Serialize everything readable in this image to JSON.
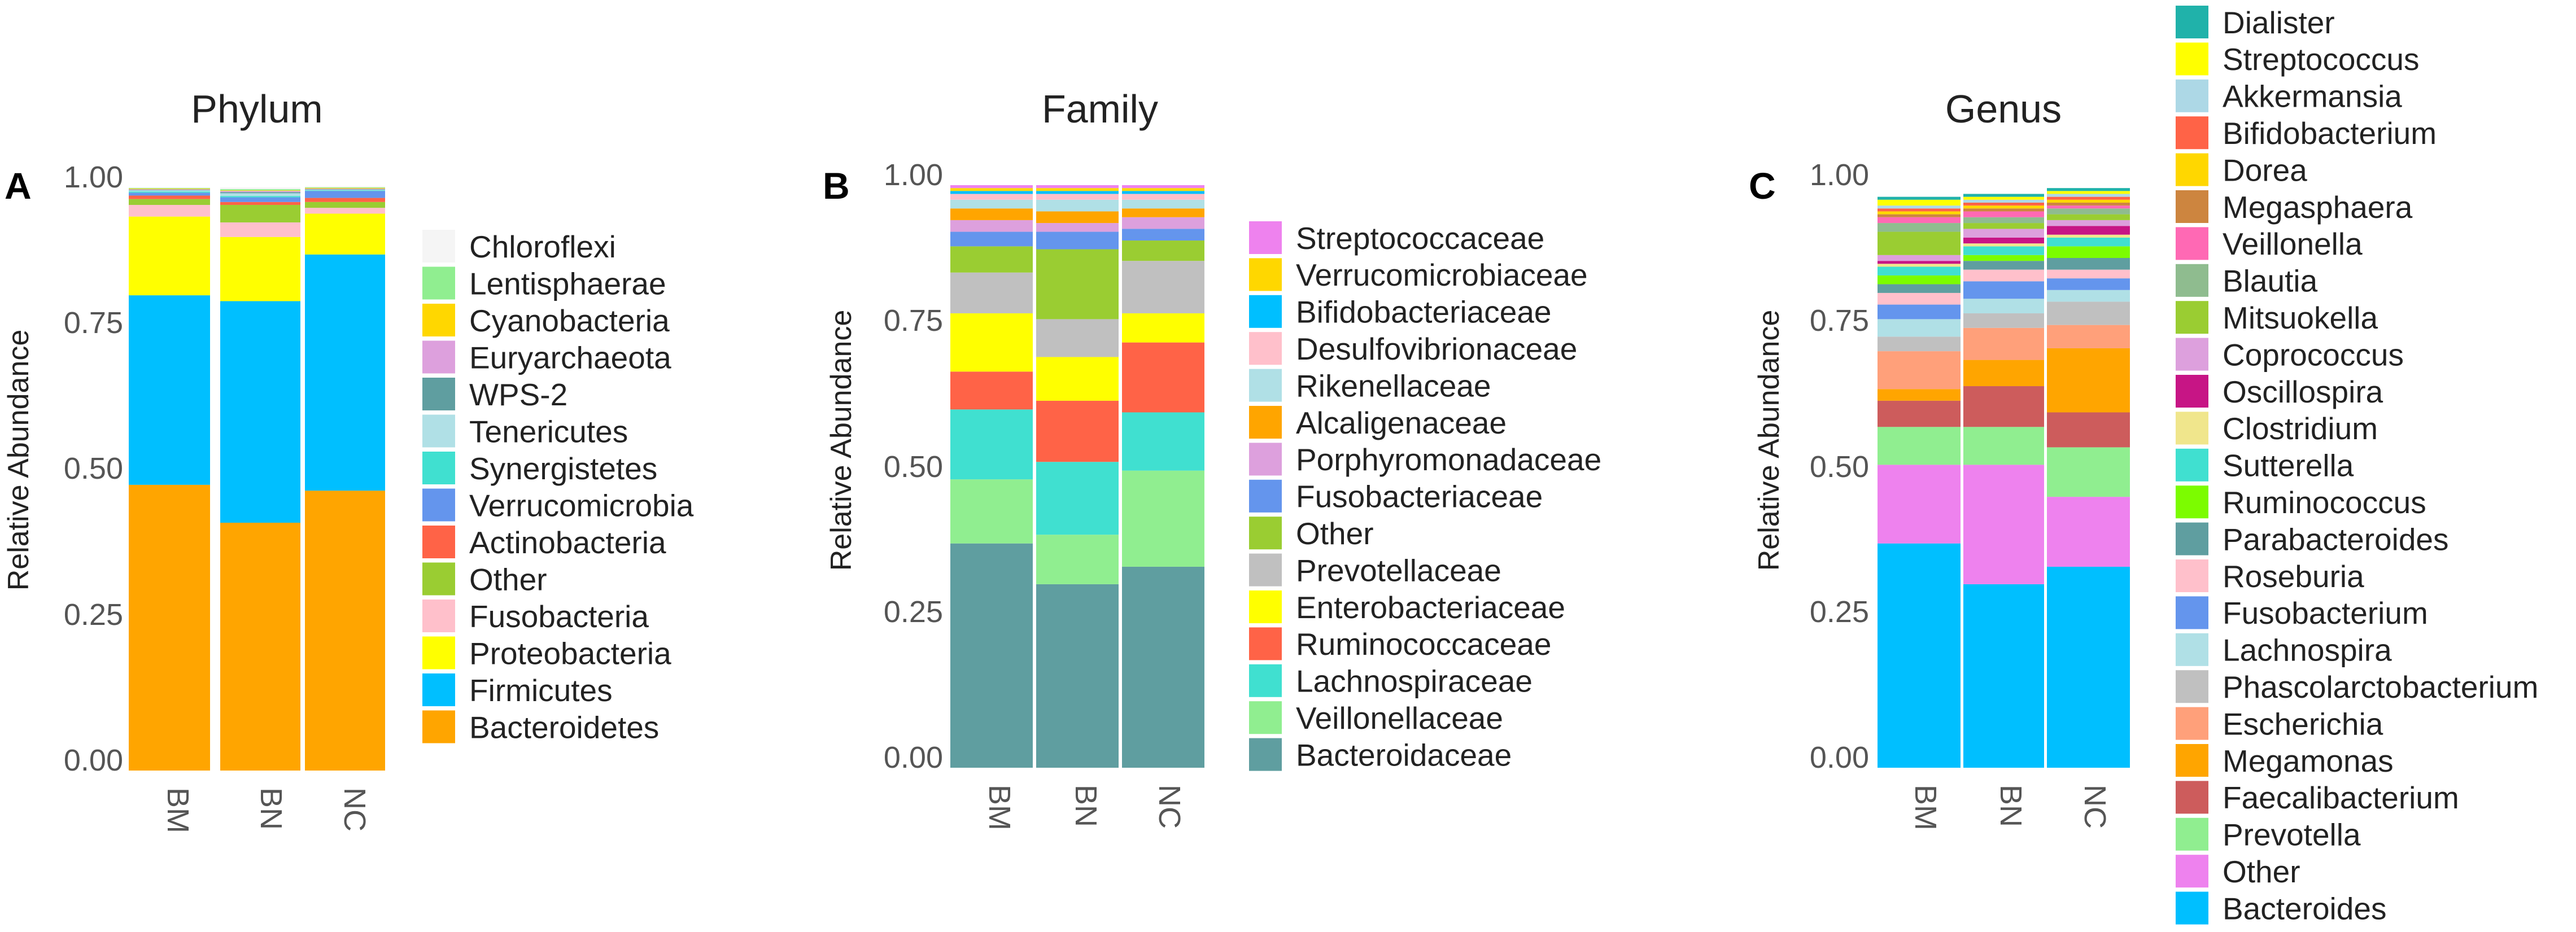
{
  "figure": {
    "background": "#ffffff",
    "text_color": "#222222",
    "tick_color": "#555555"
  },
  "chart_data": [
    {
      "id": "A",
      "type": "bar",
      "stacked": true,
      "panel_label": "A",
      "title": "Phylum",
      "xlabel": "",
      "ylabel": "Relative Abundance",
      "ylim": [
        0,
        1
      ],
      "yticks": [
        0,
        0.25,
        0.5,
        0.75,
        1
      ],
      "ytick_labels": [
        "0.00",
        "0.25",
        "0.50",
        "0.75",
        "1.00"
      ],
      "grid": false,
      "legend_position": "right",
      "categories": [
        "BM",
        "BN",
        "NC"
      ],
      "series": [
        {
          "name": "Bacteroidetes",
          "color": "#FFA500",
          "values": [
            0.49,
            0.425,
            0.48
          ]
        },
        {
          "name": "Firmicutes",
          "color": "#00BFFF",
          "values": [
            0.325,
            0.38,
            0.405
          ]
        },
        {
          "name": "Proteobacteria",
          "color": "#FFFF00",
          "values": [
            0.135,
            0.11,
            0.07
          ]
        },
        {
          "name": "Fusobacteria",
          "color": "#FFC0CB",
          "values": [
            0.02,
            0.025,
            0.01
          ]
        },
        {
          "name": "Other",
          "color": "#9ACD32",
          "values": [
            0.01,
            0.03,
            0.01
          ]
        },
        {
          "name": "Actinobacteria",
          "color": "#FF6347",
          "values": [
            0.006,
            0.005,
            0.007
          ]
        },
        {
          "name": "Verrucomicrobia",
          "color": "#6495ED",
          "values": [
            0.005,
            0.008,
            0.012
          ]
        },
        {
          "name": "Synergistetes",
          "color": "#40E0D0",
          "values": [
            0.002,
            0.002,
            0.001
          ]
        },
        {
          "name": "Tenericutes",
          "color": "#B0E0E6",
          "values": [
            0.002,
            0.005,
            0.001
          ]
        },
        {
          "name": "WPS-2",
          "color": "#5F9EA0",
          "values": [
            0.001,
            0.002,
            0.001
          ]
        },
        {
          "name": "Euryarchaeota",
          "color": "#DDA0DD",
          "values": [
            0.001,
            0.002,
            0.001
          ]
        },
        {
          "name": "Cyanobacteria",
          "color": "#FFD700",
          "values": [
            0.001,
            0.001,
            0.001
          ]
        },
        {
          "name": "Lentisphaerae",
          "color": "#90EE90",
          "values": [
            0.001,
            0.002,
            0.001
          ]
        },
        {
          "name": "Chloroflexi",
          "color": "#F5F5F5",
          "values": [
            0.001,
            0.003,
            0.002
          ]
        }
      ]
    },
    {
      "id": "B",
      "type": "bar",
      "stacked": true,
      "panel_label": "B",
      "title": "Family",
      "xlabel": "",
      "ylabel": "Relative Abundance",
      "ylim": [
        0,
        1
      ],
      "yticks": [
        0,
        0.25,
        0.5,
        0.75,
        1
      ],
      "ytick_labels": [
        "0.00",
        "0.25",
        "0.50",
        "0.75",
        "1.00"
      ],
      "grid": false,
      "legend_position": "right",
      "categories": [
        "BM",
        "BN",
        "NC"
      ],
      "series": [
        {
          "name": "Bacteroidaceae",
          "color": "#5F9EA0",
          "values": [
            0.385,
            0.315,
            0.345
          ]
        },
        {
          "name": "Veillonellaceae",
          "color": "#90EE90",
          "values": [
            0.11,
            0.085,
            0.165
          ]
        },
        {
          "name": "Lachnospiraceae",
          "color": "#40E0D0",
          "values": [
            0.12,
            0.125,
            0.1
          ]
        },
        {
          "name": "Ruminococcaceae",
          "color": "#FF6347",
          "values": [
            0.065,
            0.105,
            0.12
          ]
        },
        {
          "name": "Enterobacteriaceae",
          "color": "#FFFF00",
          "values": [
            0.1,
            0.075,
            0.05
          ]
        },
        {
          "name": "Prevotellaceae",
          "color": "#C0C0C0",
          "values": [
            0.07,
            0.065,
            0.09
          ]
        },
        {
          "name": "Other",
          "color": "#9ACD32",
          "values": [
            0.045,
            0.12,
            0.035
          ]
        },
        {
          "name": "Fusobacteriaceae",
          "color": "#6495ED",
          "values": [
            0.025,
            0.03,
            0.02
          ]
        },
        {
          "name": "Porphyromonadaceae",
          "color": "#DDA0DD",
          "values": [
            0.02,
            0.015,
            0.02
          ]
        },
        {
          "name": "Alcaligenaceae",
          "color": "#FFA500",
          "values": [
            0.02,
            0.02,
            0.015
          ]
        },
        {
          "name": "Rikenellaceae",
          "color": "#B0E0E6",
          "values": [
            0.015,
            0.02,
            0.015
          ]
        },
        {
          "name": "Desulfovibrionaceae",
          "color": "#FFC0CB",
          "values": [
            0.01,
            0.01,
            0.01
          ]
        },
        {
          "name": "Bifidobacteriaceae",
          "color": "#00BFFF",
          "values": [
            0.005,
            0.005,
            0.005
          ]
        },
        {
          "name": "Verrucomicrobiaceae",
          "color": "#FFD700",
          "values": [
            0.005,
            0.005,
            0.005
          ]
        },
        {
          "name": "Streptococcaceae",
          "color": "#EE82EE",
          "values": [
            0.005,
            0.005,
            0.005
          ]
        }
      ]
    },
    {
      "id": "C",
      "type": "bar",
      "stacked": true,
      "panel_label": "C",
      "title": "Genus",
      "xlabel": "",
      "ylabel": "Relative Abundance",
      "ylim": [
        0,
        1
      ],
      "yticks": [
        0,
        0.25,
        0.5,
        0.75,
        1
      ],
      "ytick_labels": [
        "0.00",
        "0.25",
        "0.50",
        "0.75",
        "1.00"
      ],
      "grid": false,
      "legend_position": "right",
      "categories": [
        "BM",
        "BN",
        "NC"
      ],
      "series": [
        {
          "name": "Bacteroides",
          "color": "#00BFFF",
          "values": [
            0.385,
            0.315,
            0.345
          ]
        },
        {
          "name": "Other",
          "color": "#EE82EE",
          "values": [
            0.135,
            0.205,
            0.12
          ]
        },
        {
          "name": "Prevotella",
          "color": "#90EE90",
          "values": [
            0.065,
            0.065,
            0.085
          ]
        },
        {
          "name": "Faecalibacterium",
          "color": "#CD5C5C",
          "values": [
            0.045,
            0.07,
            0.06
          ]
        },
        {
          "name": "Megamonas",
          "color": "#FFA500",
          "values": [
            0.02,
            0.045,
            0.11
          ]
        },
        {
          "name": "Escherichia",
          "color": "#FFA07A",
          "values": [
            0.065,
            0.055,
            0.04
          ]
        },
        {
          "name": "Phascolarctobacterium",
          "color": "#C0C0C0",
          "values": [
            0.025,
            0.025,
            0.04
          ]
        },
        {
          "name": "Lachnospira",
          "color": "#B0E0E6",
          "values": [
            0.03,
            0.025,
            0.02
          ]
        },
        {
          "name": "Fusobacterium",
          "color": "#6495ED",
          "values": [
            0.025,
            0.03,
            0.02
          ]
        },
        {
          "name": "Roseburia",
          "color": "#FFC0CB",
          "values": [
            0.02,
            0.02,
            0.015
          ]
        },
        {
          "name": "Parabacteroides",
          "color": "#5F9EA0",
          "values": [
            0.015,
            0.015,
            0.02
          ]
        },
        {
          "name": "Ruminococcus",
          "color": "#7CFC00",
          "values": [
            0.015,
            0.01,
            0.02
          ]
        },
        {
          "name": "Sutterella",
          "color": "#40E0D0",
          "values": [
            0.015,
            0.015,
            0.015
          ]
        },
        {
          "name": "Clostridium",
          "color": "#F0E68C",
          "values": [
            0.005,
            0.005,
            0.005
          ]
        },
        {
          "name": "Oscillospira",
          "color": "#C71585",
          "values": [
            0.005,
            0.01,
            0.015
          ]
        },
        {
          "name": "Coprococcus",
          "color": "#DDA0DD",
          "values": [
            0.01,
            0.015,
            0.01
          ]
        },
        {
          "name": "Mitsuokella",
          "color": "#9ACD32",
          "values": [
            0.04,
            0.01,
            0.01
          ]
        },
        {
          "name": "Blautia",
          "color": "#8FBC8F",
          "values": [
            0.015,
            0.01,
            0.01
          ]
        },
        {
          "name": "Veillonella",
          "color": "#FF69B4",
          "values": [
            0.01,
            0.01,
            0.005
          ]
        },
        {
          "name": "Megasphaera",
          "color": "#CD853F",
          "values": [
            0.005,
            0.005,
            0.005
          ]
        },
        {
          "name": "Dorea",
          "color": "#FFD700",
          "values": [
            0.005,
            0.005,
            0.005
          ]
        },
        {
          "name": "Bifidobacterium",
          "color": "#FF6347",
          "values": [
            0.005,
            0.005,
            0.005
          ]
        },
        {
          "name": "Akkermansia",
          "color": "#ADD8E6",
          "values": [
            0.005,
            0.005,
            0.005
          ]
        },
        {
          "name": "Streptococcus",
          "color": "#FFFF00",
          "values": [
            0.01,
            0.005,
            0.005
          ]
        },
        {
          "name": "Dialister",
          "color": "#20B2AA",
          "values": [
            0.005,
            0.005,
            0.005
          ]
        }
      ]
    }
  ]
}
